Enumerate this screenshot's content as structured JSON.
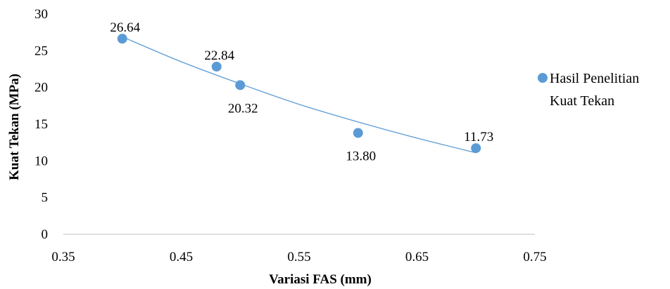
{
  "chart_data": {
    "type": "scatter",
    "xlabel": "Variasi FAS (mm)",
    "ylabel": "Kuat Tekan (MPa)",
    "xlim": [
      0.35,
      0.75
    ],
    "ylim": [
      0,
      30
    ],
    "xticks": [
      0.35,
      0.45,
      0.55,
      0.65,
      0.75
    ],
    "xtick_labels": [
      "0.35",
      "0.45",
      "0.55",
      "0.65",
      "0.75"
    ],
    "yticks": [
      0,
      5,
      10,
      15,
      20,
      25,
      30
    ],
    "ytick_labels": [
      "0",
      "5",
      "10",
      "15",
      "20",
      "25",
      "30"
    ],
    "grid": false,
    "legend_position": "right",
    "series": [
      {
        "name": "Hasil Penelitian Kuat Tekan",
        "legend_lines": [
          "Hasil Penelitian",
          "Kuat Tekan"
        ],
        "color": "#5b9bd5",
        "points": [
          {
            "x": 0.4,
            "y": 26.64,
            "label": "26.64",
            "label_pos": "above"
          },
          {
            "x": 0.48,
            "y": 22.84,
            "label": "22.84",
            "label_pos": "above"
          },
          {
            "x": 0.5,
            "y": 20.32,
            "label": "20.32",
            "label_pos": "below"
          },
          {
            "x": 0.6,
            "y": 13.8,
            "label": "13.80",
            "label_pos": "below"
          },
          {
            "x": 0.7,
            "y": 11.73,
            "label": "11.73",
            "label_pos": "above"
          }
        ],
        "trendline": {
          "type": "polynomial",
          "color": "#5b9bd5",
          "points": [
            [
              0.4,
              26.9
            ],
            [
              0.45,
              23.5
            ],
            [
              0.5,
              20.5
            ],
            [
              0.55,
              17.7
            ],
            [
              0.6,
              15.3
            ],
            [
              0.65,
              13.1
            ],
            [
              0.7,
              11.1
            ]
          ]
        }
      }
    ]
  }
}
